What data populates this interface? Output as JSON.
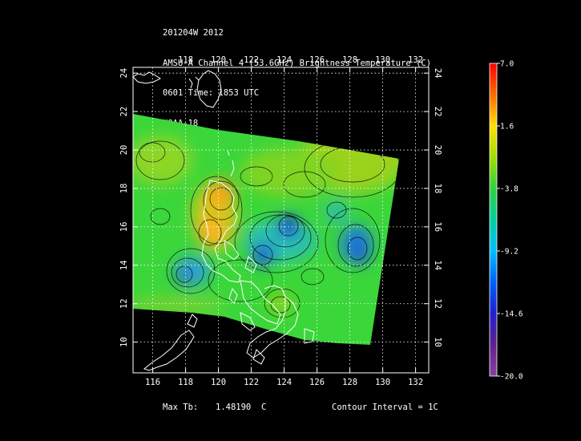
{
  "header": {
    "line1": "201204W 2012",
    "line2": "AMSU-A Channel 4 (53.6GHz) Brightness Temperature (C)",
    "line3": "0601 Time: 1853 UTC",
    "line4": "NOAA-18"
  },
  "map": {
    "lon_range": [
      114.8,
      132.8
    ],
    "lat_range": [
      8.4,
      24.3
    ],
    "lon_ticks": [
      "116",
      "118",
      "120",
      "122",
      "124",
      "126",
      "128",
      "130",
      "132"
    ],
    "lon_ticks_top": [
      "118",
      "120",
      "122",
      "124",
      "126",
      "128",
      "130",
      "132"
    ],
    "lat_ticks": [
      "10",
      "12",
      "14",
      "16",
      "18",
      "20",
      "22",
      "24"
    ],
    "grid": true,
    "swath_color": "#3bd63a"
  },
  "colorbar": {
    "labels": [
      "7.0",
      "1.6",
      "-3.8",
      "-9.2",
      "-14.6",
      "-20.0"
    ],
    "range": [
      -20.0,
      7.0
    ]
  },
  "footer": {
    "max_label": "Max Tb:",
    "max_value": "1.48190",
    "max_unit": "C",
    "contour_interval": "Contour Interval = 1C"
  }
}
